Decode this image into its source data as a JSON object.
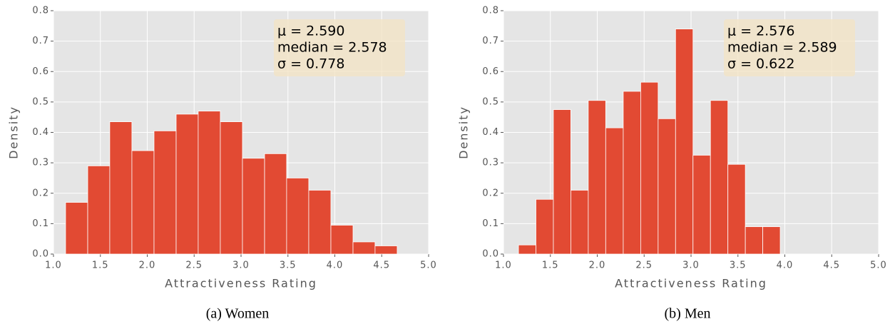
{
  "chart_data": [
    {
      "type": "histogram",
      "color": "#e24a33",
      "grid": true,
      "bins": [
        1.129,
        1.365,
        1.6,
        1.836,
        2.072,
        2.308,
        2.543,
        2.779,
        3.015,
        3.251,
        3.486,
        3.722,
        3.958,
        4.194,
        4.429,
        4.665
      ],
      "values": [
        0.17,
        0.29,
        0.435,
        0.34,
        0.405,
        0.46,
        0.47,
        0.435,
        0.315,
        0.33,
        0.25,
        0.21,
        0.095,
        0.04,
        0.027
      ],
      "xlim": [
        1,
        5
      ],
      "ylim": [
        0,
        0.8
      ],
      "xticks": [
        {
          "value": 1,
          "label": "1.0"
        },
        1.5,
        {
          "value": 2,
          "label": "2.0"
        },
        2.5,
        {
          "value": 3,
          "label": "3.0"
        },
        3.5,
        {
          "value": 4,
          "label": "4.0"
        },
        4.5,
        {
          "value": 5,
          "label": "5.0"
        }
      ],
      "yticks": [
        {
          "value": 0,
          "label": "0.0"
        },
        0.1,
        0.2,
        0.3,
        0.4,
        0.5,
        0.6,
        0.7,
        0.8
      ],
      "xlabel": "Attractiveness Rating",
      "ylabel": "Density",
      "annotations": [
        "μ = 2.590",
        "median = 2.578",
        "σ = 0.778"
      ],
      "caption": "(a) Women"
    },
    {
      "type": "histogram",
      "color": "#e24a33",
      "grid": true,
      "bins": [
        1.16,
        1.346,
        1.532,
        1.718,
        1.904,
        2.09,
        2.277,
        2.463,
        2.649,
        2.835,
        3.021,
        3.207,
        3.393,
        3.579,
        3.765,
        3.951
      ],
      "values": [
        0.03,
        0.18,
        0.475,
        0.21,
        0.505,
        0.415,
        0.535,
        0.565,
        0.445,
        0.74,
        0.325,
        0.505,
        0.295,
        0.09,
        0.09
      ],
      "xlim": [
        1,
        5
      ],
      "ylim": [
        0,
        0.8
      ],
      "xticks": [
        {
          "value": 1,
          "label": "1.0"
        },
        1.5,
        {
          "value": 2,
          "label": "2.0"
        },
        2.5,
        {
          "value": 3,
          "label": "3.0"
        },
        3.5,
        {
          "value": 4,
          "label": "4.0"
        },
        4.5,
        {
          "value": 5,
          "label": "5.0"
        }
      ],
      "yticks": [
        {
          "value": 0,
          "label": "0.0"
        },
        0.1,
        0.2,
        0.3,
        0.4,
        0.5,
        0.6,
        0.7,
        0.8
      ],
      "xlabel": "Attractiveness Rating",
      "ylabel": "Density",
      "annotations": [
        "μ = 2.576",
        "median = 2.589",
        "σ = 0.622"
      ],
      "caption": "(b) Men"
    }
  ]
}
